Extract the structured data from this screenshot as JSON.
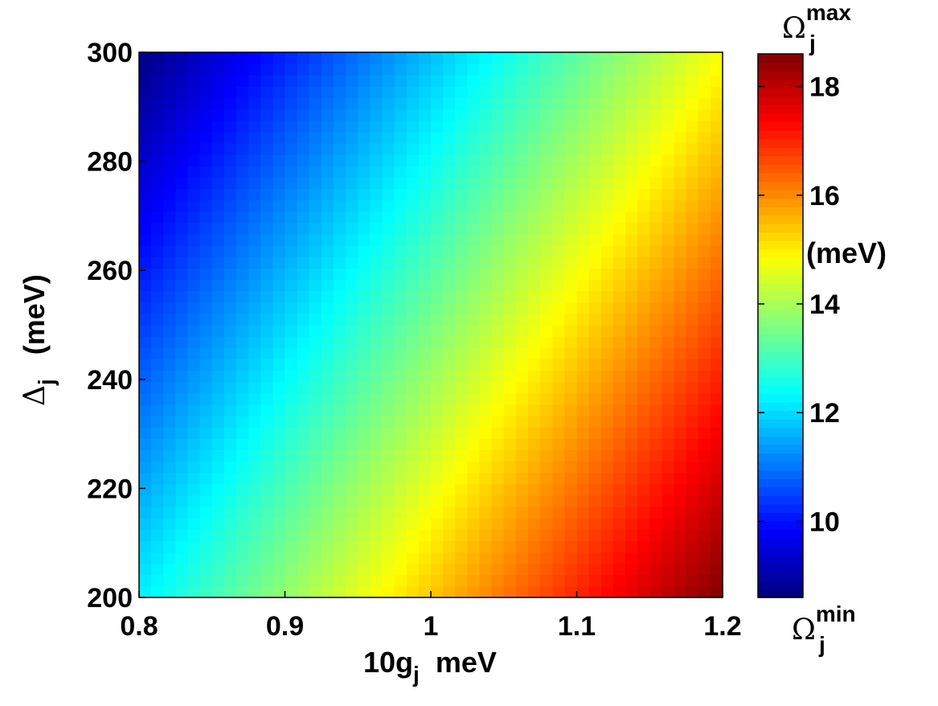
{
  "chart_data": {
    "type": "heatmap",
    "title": "",
    "xlabel": {
      "base": "10g",
      "sub": "j",
      "suffix": "  meV"
    },
    "ylabel": {
      "base": "Δ",
      "sub": "j",
      "suffix": "(meV)"
    },
    "x": {
      "min": 0.8,
      "max": 1.2,
      "ticks": [
        "0.8",
        "0.9",
        "1",
        "1.1",
        "1.2"
      ],
      "tick_values": [
        0.8,
        0.9,
        1.0,
        1.1,
        1.2
      ]
    },
    "y": {
      "min": 200,
      "max": 300,
      "ticks": [
        "200",
        "220",
        "240",
        "260",
        "280",
        "300"
      ],
      "tick_values": [
        200,
        220,
        240,
        260,
        280,
        300
      ]
    },
    "grid": {
      "nx": 48,
      "ny": 48
    },
    "value_model": "Omega ≈ 13.6 + 8.6*(g - 1.0) - 0.046*(Delta - 250)",
    "value_range": [
      8.6,
      18.6
    ],
    "corner_values": {
      "x0.8_y200": 12.2,
      "x1.2_y200": 18.6,
      "x0.8_y300": 8.6,
      "x1.2_y300": 14.8
    },
    "colormap": "jet",
    "colorbar": {
      "min": 8.6,
      "max": 18.6,
      "ticks": [
        "10",
        "12",
        "14",
        "16",
        "18"
      ],
      "tick_values": [
        10,
        12,
        14,
        16,
        18
      ],
      "unit_label": "(meV)",
      "top_label": {
        "base": "Ω",
        "sub": "j",
        "sup": "max"
      },
      "bottom_label": {
        "base": "Ω",
        "sub": "j",
        "sup": "min"
      }
    }
  }
}
